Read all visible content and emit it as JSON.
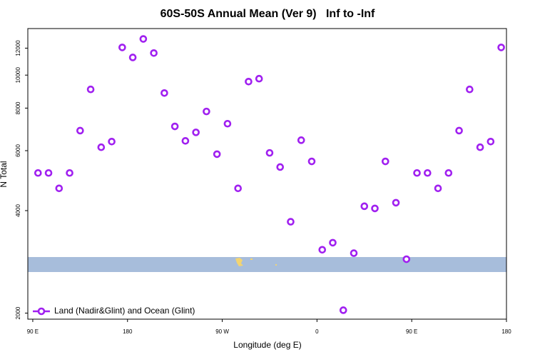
{
  "chart_data": {
    "type": "scatter",
    "title": "60S-50S Annual Mean (Ver 9)   Inf to -Inf",
    "x_label": "Longitude (deg E)",
    "y_label": "N Total",
    "log_y": true,
    "xlim": [
      85.3,
      540
    ],
    "ylim": [
      1920,
      13700
    ],
    "xticks": [
      {
        "value": 90,
        "label": "90 E"
      },
      {
        "value": 180,
        "label": "180"
      },
      {
        "value": 270,
        "label": "90 W"
      },
      {
        "value": 360,
        "label": "0"
      },
      {
        "value": 450,
        "label": "90 E"
      },
      {
        "value": 540,
        "label": "180"
      }
    ],
    "yticks": [
      2000,
      4000,
      6000,
      8000,
      10000,
      12000
    ],
    "legend": "bottom-left",
    "series": [
      {
        "name": "Land (Nadir&Glint) and Ocean (Glint)",
        "color": "#a020f0",
        "x": [
          95,
          105,
          115,
          125,
          135,
          145,
          155,
          165,
          175,
          185,
          195,
          205,
          215,
          225,
          235,
          245,
          255,
          265,
          275,
          285,
          295,
          305,
          315,
          325,
          335,
          345,
          355,
          365,
          375,
          385,
          395,
          405,
          415,
          425,
          435,
          445,
          455,
          465,
          475,
          485,
          495,
          505,
          515,
          525,
          535
        ],
        "values": [
          5160,
          5160,
          4650,
          5160,
          6870,
          9080,
          6140,
          6380,
          12060,
          11270,
          12770,
          11610,
          8860,
          7070,
          6410,
          6790,
          7820,
          5860,
          7200,
          4650,
          9570,
          9760,
          5910,
          5370,
          3710,
          6440,
          5580,
          3070,
          3220,
          2040,
          3000,
          4120,
          4060,
          5580,
          4220,
          2880,
          5160,
          5160,
          4650,
          5160,
          6870,
          9080,
          6140,
          6380,
          12060
        ]
      }
    ]
  }
}
